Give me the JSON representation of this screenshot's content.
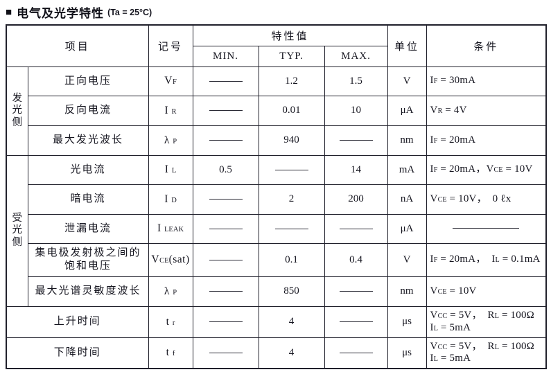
{
  "title": {
    "bullet": "■",
    "text": "电气及光学特性",
    "note": "(Ta = 25°C)"
  },
  "table": {
    "headers": {
      "item": "项目",
      "symbol": "记号",
      "value": "特性值",
      "min": "MIN.",
      "typ": "TYP.",
      "max": "MAX.",
      "unit": "单位",
      "condition": "条件"
    },
    "groups": [
      {
        "label": "发光侧",
        "start": 0,
        "span": 3
      },
      {
        "label": "受光侧",
        "start": 3,
        "span": 5
      }
    ],
    "rows": [
      {
        "item": "正向电压",
        "symbol": "V~F~",
        "min": "——",
        "typ": "1.2",
        "max": "1.5",
        "unit": "V",
        "condition": "I~F~ = 30mA"
      },
      {
        "item": "反向电流",
        "symbol": "I ~R~",
        "min": "——",
        "typ": "0.01",
        "max": "10",
        "unit": "μA",
        "condition": "V~R~ = 4V"
      },
      {
        "item": "最大发光波长",
        "symbol": "λ ~P~",
        "min": "——",
        "typ": "940",
        "max": "——",
        "unit": "nm",
        "condition": "I~F~ = 20mA"
      },
      {
        "item": "光电流",
        "symbol": "I ~L~",
        "min": "0.5",
        "typ": "——",
        "max": "14",
        "unit": "mA",
        "condition": "I~F~ = 20mA，V~CE~ = 10V"
      },
      {
        "item": "暗电流",
        "symbol": "I ~D~",
        "min": "——",
        "typ": "2",
        "max": "200",
        "unit": "nA",
        "condition": "V~CE~ = 10V，  0 ℓx"
      },
      {
        "item": "泄漏电流",
        "symbol": "I ~LEAK~",
        "min": "——",
        "typ": "——",
        "max": "——",
        "unit": "μA",
        "condition": "————"
      },
      {
        "item": "集电极发射极之间的\n饱和电压",
        "symbol": "V~CE~(sat)",
        "min": "——",
        "typ": "0.1",
        "max": "0.4",
        "unit": "V",
        "condition": "I~F~ = 20mA，  I~L~ = 0.1mA"
      },
      {
        "item": "最大光谱灵敏度波长",
        "symbol": "λ ~P~",
        "min": "——",
        "typ": "850",
        "max": "——",
        "unit": "nm",
        "condition": "V~CE~ = 10V"
      },
      {
        "item": "上升时间",
        "full_width": true,
        "symbol": "t ~r~",
        "min": "——",
        "typ": "4",
        "max": "——",
        "unit": "μs",
        "condition": "V~CC~ = 5V，  R~L~ = 100Ω\nI~L~ = 5mA"
      },
      {
        "item": "下降时间",
        "full_width": true,
        "symbol": "t ~f~",
        "min": "——",
        "typ": "4",
        "max": "——",
        "unit": "μs",
        "condition": "V~CC~ = 5V，  R~L~ = 100Ω\nI~L~ = 5mA"
      }
    ]
  }
}
